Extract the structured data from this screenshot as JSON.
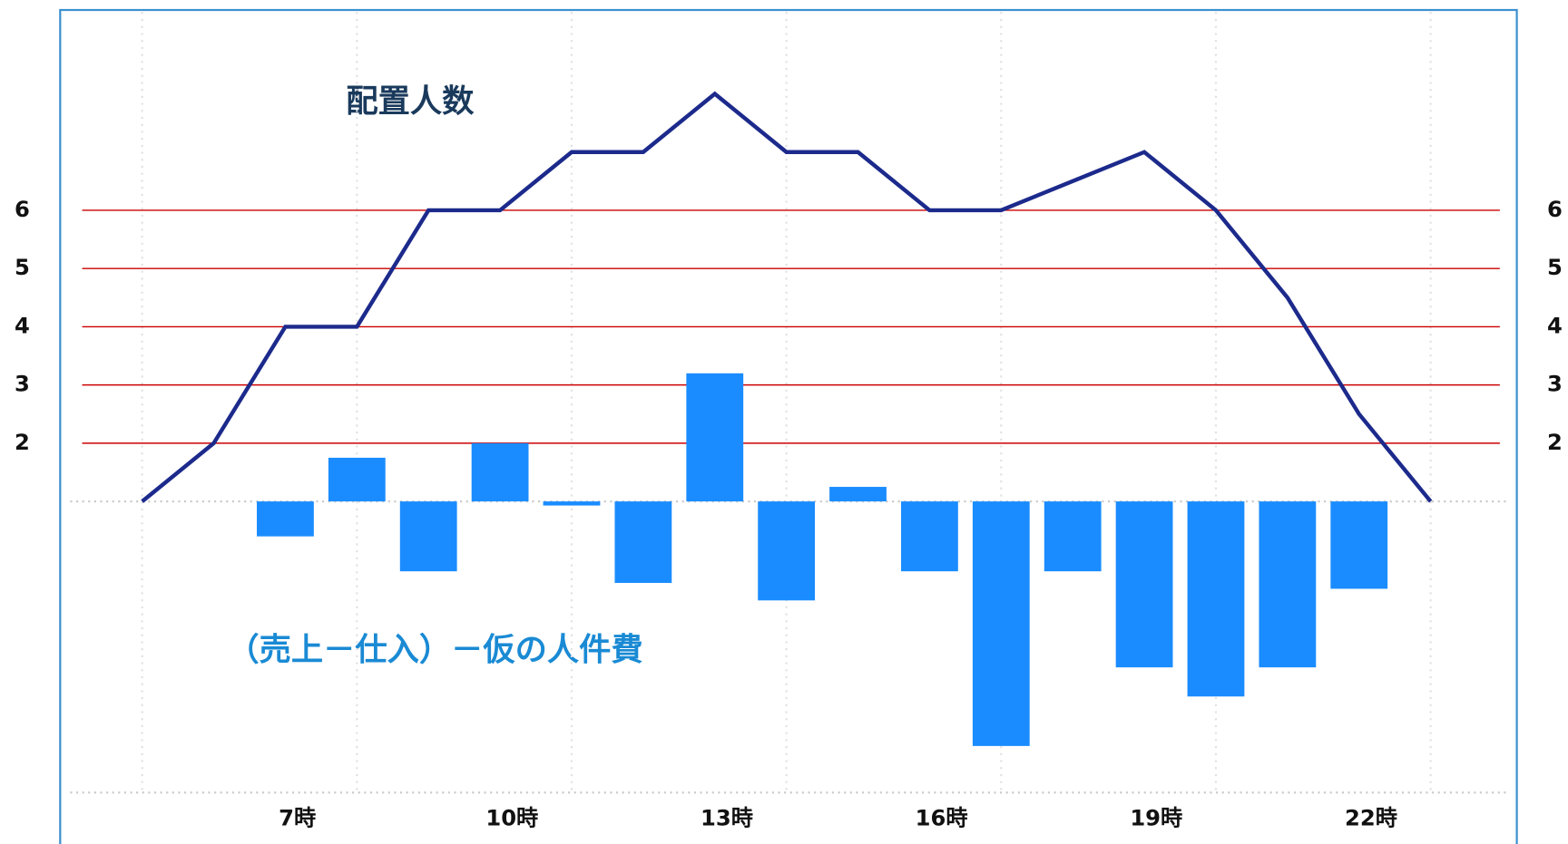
{
  "chart_data": {
    "type": "combo",
    "annotations": [
      "配置人数",
      "（売上－仕入）－仮の人件費"
    ],
    "categories": [
      null,
      null,
      "7時",
      null,
      null,
      "10時",
      null,
      null,
      "13時",
      null,
      null,
      "16時",
      null,
      null,
      "19時",
      null,
      null,
      "22時",
      null
    ],
    "series": [
      {
        "type": "line",
        "color": "#1c2a8c",
        "values": [
          1,
          2,
          4,
          4,
          6,
          6,
          7,
          7,
          8,
          7,
          7,
          6,
          6,
          6.5,
          7,
          6,
          4.5,
          2.5,
          1
        ]
      },
      {
        "type": "bar",
        "axis": "y2",
        "color": "#1a8cff",
        "values": [
          null,
          null,
          -0.6,
          0.75,
          -1.2,
          1.0,
          -0.07,
          -1.4,
          2.2,
          -1.7,
          0.25,
          -1.2,
          -4.2,
          -1.2,
          -2.85,
          -3.35,
          -2.85,
          -1.5,
          null
        ]
      }
    ],
    "ylim": [
      -4,
      9.5
    ],
    "yticks": [
      2,
      3,
      4,
      5,
      6
    ],
    "y2lim": [
      -5,
      8.5
    ],
    "grid": true,
    "grid_color": "#cc0000"
  }
}
